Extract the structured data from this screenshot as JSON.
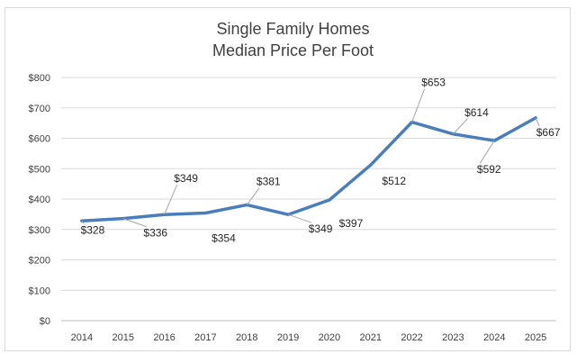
{
  "chart_data": {
    "type": "line",
    "title": [
      "Single Family Homes",
      "Median Price Per Foot"
    ],
    "xlabel": "",
    "ylabel": "",
    "categories": [
      "2014",
      "2015",
      "2016",
      "2017",
      "2018",
      "2019",
      "2020",
      "2021",
      "2022",
      "2023",
      "2024",
      "2025"
    ],
    "series": [
      {
        "values": [
          328,
          336,
          349,
          354,
          381,
          349,
          397,
          512,
          653,
          614,
          592,
          667
        ],
        "color": "#4a7ebb"
      }
    ],
    "data_labels": [
      "$328",
      "$336",
      "$349",
      null,
      "$381",
      "$349",
      "$397",
      "$512",
      "$653",
      "$614",
      "$592",
      "$667"
    ],
    "annotation": {
      "text": "$354",
      "category": "2017",
      "value": 354
    },
    "ylim": [
      0,
      800
    ],
    "yticks": [
      0,
      100,
      200,
      300,
      400,
      500,
      600,
      700,
      800
    ],
    "ytick_labels": [
      "$0",
      "$100",
      "$200",
      "$300",
      "$400",
      "$500",
      "$600",
      "$700",
      "$800"
    ],
    "grid": true,
    "legend": "none",
    "colors": {
      "gridline": "#d9d9d9",
      "axis": "#bfbfbf",
      "leader": "#a6a6a6",
      "text": "#404040"
    }
  }
}
